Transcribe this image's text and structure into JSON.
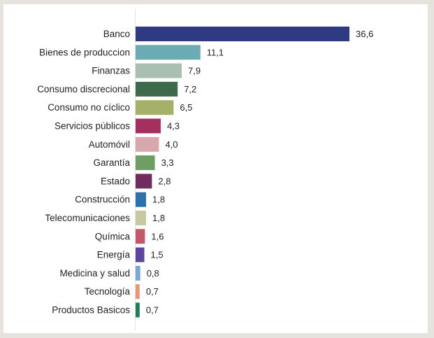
{
  "chart_data": {
    "type": "bar",
    "orientation": "horizontal",
    "title": "",
    "xlabel": "",
    "ylabel": "",
    "grid": false,
    "legend": "none",
    "xlim": [
      0,
      36.6
    ],
    "categories": [
      "Banco",
      "Bienes de produccion",
      "Finanzas",
      "Consumo discrecional",
      "Consumo no cíclico",
      "Servicios públicos",
      "Automóvil",
      "Garantía",
      "Estado",
      "Construcción",
      "Telecomunicaciones",
      "Química",
      "Energía",
      "Medicina y salud",
      "Tecnología",
      "Productos Basicos"
    ],
    "values": [
      36.6,
      11.1,
      7.9,
      7.2,
      6.5,
      4.3,
      4.0,
      3.3,
      2.8,
      1.8,
      1.8,
      1.6,
      1.5,
      0.8,
      0.7,
      0.7
    ],
    "value_labels": [
      "36,6",
      "11,1",
      "7,9",
      "7,2",
      "6,5",
      "4,3",
      "4,0",
      "3,3",
      "2,8",
      "1,8",
      "1,8",
      "1,6",
      "1,5",
      "0,8",
      "0,7",
      "0,7"
    ],
    "colors": [
      "#2e3a82",
      "#6aabb4",
      "#a9bfb2",
      "#3d6a4a",
      "#a5b069",
      "#a3305f",
      "#d7a9ad",
      "#6e9e64",
      "#6e2d5e",
      "#2e70ac",
      "#c6c9a2",
      "#c2586a",
      "#5b469e",
      "#76a8d6",
      "#e8957a",
      "#1f7e53"
    ]
  }
}
